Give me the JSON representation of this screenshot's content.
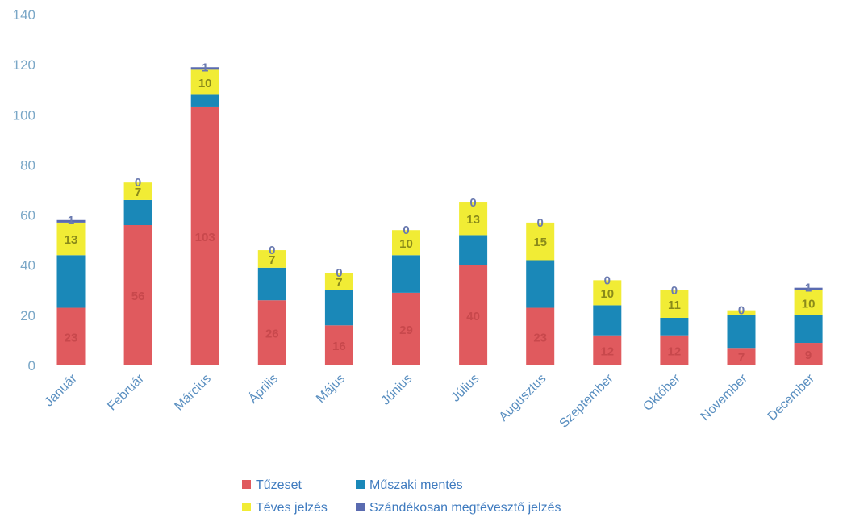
{
  "chart_data": {
    "type": "bar",
    "stacked": true,
    "categories": [
      "Január",
      "Február",
      "Március",
      "Április",
      "Május",
      "Június",
      "Július",
      "Augusztus",
      "Szeptember",
      "Október",
      "November",
      "December"
    ],
    "series": [
      {
        "name": "Tűzeset",
        "color": "#e05a5e",
        "values": [
          23,
          56,
          103,
          26,
          16,
          29,
          40,
          23,
          12,
          12,
          7,
          9
        ]
      },
      {
        "name": "Műszaki mentés",
        "color": "#1a88b8",
        "values": [
          21,
          10,
          5,
          13,
          14,
          15,
          12,
          19,
          12,
          7,
          13,
          11
        ]
      },
      {
        "name": "Téves jelzés",
        "color": "#f1ec35",
        "values": [
          13,
          7,
          10,
          7,
          7,
          10,
          13,
          15,
          10,
          11,
          2,
          10
        ]
      },
      {
        "name": "Szándékosan megtévesztő jelzés",
        "color": "#5a6bb0",
        "values": [
          1,
          0,
          1,
          0,
          0,
          0,
          0,
          0,
          0,
          0,
          0,
          1
        ]
      }
    ],
    "yticks": [
      0,
      20,
      40,
      60,
      80,
      100,
      120,
      140
    ],
    "ylim": [
      0,
      140
    ],
    "grid": false,
    "legend_position": "bottom",
    "data_labels": [
      [
        "23",
        "",
        "13",
        "1"
      ],
      [
        "56",
        "",
        "7",
        "0"
      ],
      [
        "103",
        "",
        "10",
        "1"
      ],
      [
        "26",
        "",
        "7",
        "0"
      ],
      [
        "16",
        "",
        "7",
        "0"
      ],
      [
        "29",
        "",
        "10",
        "0"
      ],
      [
        "40",
        "",
        "13",
        "0"
      ],
      [
        "23",
        "",
        "15",
        "0"
      ],
      [
        "12",
        "",
        "10",
        "0"
      ],
      [
        "12",
        "",
        "11",
        "0"
      ],
      [
        "7",
        "",
        "",
        "0"
      ],
      [
        "9",
        "",
        "10",
        "1"
      ]
    ]
  }
}
